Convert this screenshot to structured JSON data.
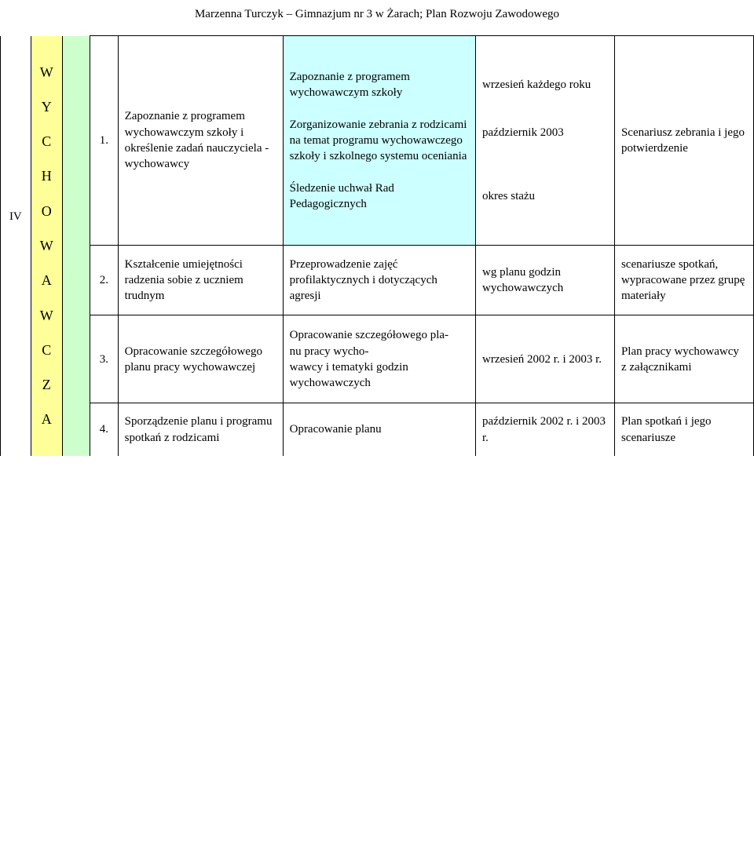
{
  "header": "Marzenna Turczyk – Gimnazjum nr 3 w Żarach; Plan Rozwoju Zawodowego",
  "sidebar": {
    "roman": "IV",
    "letters": [
      "W",
      "Y",
      "C",
      "H",
      "O",
      "W",
      "A",
      "W",
      "C",
      "Z",
      "A"
    ]
  },
  "rows": [
    {
      "num": "1.",
      "a": "Zapoznanie z programem wychowawczym szkoły i określenie zadań nauczyciela - wychowawcy",
      "b": "Zapoznanie z programem wychowawczym szkoły\n\nZorganizowanie zebrania z rodzicami na temat programu wychowawczego szkoły i szkolnego systemu oceniania\n\nŚledzenie uchwał Rad Pedagogicznych",
      "c": "wrzesień każdego roku\n\n\npaździernik 2003\n\n\n\nokres stażu",
      "d": "Scenariusz zebrania i jego potwierdzenie"
    },
    {
      "num": "2.",
      "a": "Kształcenie umiejętności radzenia sobie z uczniem trudnym",
      "b": "Przeprowadzenie zajęć profilaktycznych i dotyczących agresji",
      "c": "wg planu godzin wychowawczych",
      "d": "scenariusze spotkań, wypracowane przez grupę materiały"
    },
    {
      "num": "3.",
      "a": "Opracowanie szczegółowego planu pracy wychowawczej",
      "b": "Opracowanie szczegółowego pla-\nnu pracy wycho-\nwawcy i tematyki godzin wychowawczych",
      "c": "wrzesień 2002 r. i 2003 r.",
      "d": "Plan pracy wychowawcy z załącznikami"
    },
    {
      "num": "4.",
      "a": "Sporządzenie planu i programu spotkań z rodzicami",
      "b": "Opracowanie planu",
      "c": "październik 2002 r. i 2003 r.",
      "d": "Plan spotkań i jego scenariusze"
    }
  ]
}
